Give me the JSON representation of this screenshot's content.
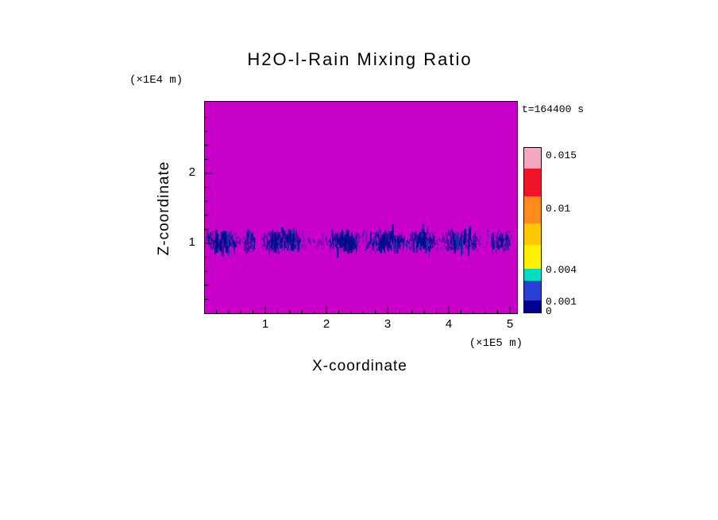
{
  "title": "H2O-l-Rain Mixing Ratio",
  "time_label": "t=164400 s",
  "x_axis": {
    "label": "X-coordinate",
    "units": "(×1E5 m)",
    "ticks": [
      "1",
      "2",
      "3",
      "4",
      "5"
    ]
  },
  "y_axis": {
    "label": "Z-coordinate",
    "units": "(×1E4 m)",
    "ticks": [
      "1",
      "2"
    ]
  },
  "colorbar": {
    "labels": [
      "0.015",
      "0.01",
      "0.004",
      "0.001",
      "0"
    ],
    "segments_bottom_to_top": [
      {
        "value_range": [
          0,
          0.001
        ],
        "color": "#00008F"
      },
      {
        "value_range": [
          0.001,
          0.002
        ],
        "color": "#2A3FD4"
      },
      {
        "value_range": [
          0.002,
          0.004
        ],
        "color": "#00DCC0"
      },
      {
        "value_range": [
          0.004,
          0.006
        ],
        "color": "#FFF000"
      },
      {
        "value_range": [
          0.006,
          0.008
        ],
        "color": "#FFC800"
      },
      {
        "value_range": [
          0.008,
          0.01
        ],
        "color": "#FF8C1A"
      },
      {
        "value_range": [
          0.01,
          0.0125
        ],
        "color": "#F01428"
      },
      {
        "value_range": [
          0.0125,
          0.015
        ],
        "color": "#F2A8BE"
      }
    ]
  },
  "chart_data": {
    "type": "heatmap",
    "title": "H2O-l-Rain Mixing Ratio",
    "time_annotation": "t=164400 s",
    "xlabel": "X-coordinate",
    "x_units_factor": "×1E5 m",
    "x_range": [
      0,
      5.1
    ],
    "x_tick_values": [
      1,
      2,
      3,
      4,
      5
    ],
    "ylabel": "Z-coordinate",
    "y_units_factor": "×1E4 m",
    "y_range": [
      0,
      3.0
    ],
    "y_tick_values": [
      1,
      2
    ],
    "background_color": "#C800C8",
    "background_meaning": "rain mixing ratio ~0 everywhere except the rain band",
    "colorbar_levels": [
      0,
      0.001,
      0.004,
      0.01,
      0.015
    ],
    "rain_band": {
      "description": "sparse dark-blue rain streaks in a horizontal band near z = 1 (x1E4 m) spanning the full x range",
      "z_center": 1.03,
      "z_sigma": 0.11,
      "value_range": [
        0.0005,
        0.002
      ],
      "color": "#000D8A",
      "alt_color": "#2030B0",
      "clusters_x": [
        {
          "center": 0.3,
          "halfwidth": 0.28,
          "density": 140
        },
        {
          "center": 0.75,
          "halfwidth": 0.12,
          "density": 40
        },
        {
          "center": 1.3,
          "halfwidth": 0.38,
          "density": 170
        },
        {
          "center": 2.3,
          "halfwidth": 0.27,
          "density": 150
        },
        {
          "center": 3.0,
          "halfwidth": 0.35,
          "density": 160
        },
        {
          "center": 3.55,
          "halfwidth": 0.25,
          "density": 120
        },
        {
          "center": 4.2,
          "halfwidth": 0.35,
          "density": 120
        },
        {
          "center": 4.85,
          "halfwidth": 0.22,
          "density": 80
        }
      ],
      "sparse_background_strokes": 160
    }
  }
}
